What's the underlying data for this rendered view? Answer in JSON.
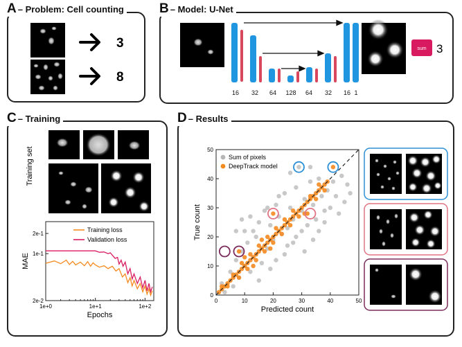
{
  "panels": {
    "a": {
      "letter": "A",
      "title": "– Problem: Cell counting",
      "counts": [
        "3",
        "8"
      ]
    },
    "b": {
      "letter": "B",
      "title": "– Model: U-Net",
      "sum_label": "sum",
      "output": "3",
      "channels": [
        "16",
        "32",
        "64",
        "128",
        "64",
        "32",
        "16",
        "1"
      ]
    },
    "c": {
      "letter": "C",
      "title": "– Training",
      "training_set_label": "Training set"
    },
    "d": {
      "letter": "D",
      "title": "– Results"
    }
  },
  "colors": {
    "blue": "#2196e0",
    "red": "#d9475c",
    "orange": "#f58a1f",
    "gray": "#b5b5b5",
    "training_loss": "#f58a1f",
    "validation_loss": "#d81b60",
    "frame_blue": "#2b8fd6",
    "frame_red": "#e07484",
    "frame_purple": "#7a2b5c"
  },
  "loss_chart": {
    "type": "line",
    "xlabel": "Epochs",
    "ylabel": "MAE",
    "xscale": "log",
    "yscale": "log",
    "xlim": [
      1,
      150
    ],
    "ylim": [
      0.02,
      0.3
    ],
    "xticks": [
      "1e+0",
      "1e+1",
      "1e+2"
    ],
    "yticks": [
      "2e-1",
      "1e-1",
      "2e-2"
    ],
    "series": [
      {
        "name": "Training loss",
        "x": [
          1,
          1.5,
          2,
          2.6,
          3,
          3.5,
          4,
          5,
          6,
          7,
          8,
          9,
          10,
          12,
          15,
          18,
          22,
          26,
          30,
          35,
          40,
          45,
          50,
          55,
          60,
          70,
          80,
          90,
          100,
          110,
          120,
          130,
          140
        ],
        "y": [
          0.072,
          0.078,
          0.071,
          0.08,
          0.069,
          0.077,
          0.068,
          0.075,
          0.066,
          0.076,
          0.065,
          0.073,
          0.068,
          0.063,
          0.066,
          0.06,
          0.065,
          0.055,
          0.06,
          0.045,
          0.05,
          0.037,
          0.044,
          0.033,
          0.04,
          0.03,
          0.036,
          0.027,
          0.033,
          0.025,
          0.03,
          0.024,
          0.028
        ]
      },
      {
        "name": "Validation loss",
        "x": [
          1,
          2,
          3,
          5,
          8,
          10,
          12,
          15,
          18,
          20,
          22,
          25,
          28,
          30,
          33,
          36,
          40,
          45,
          50,
          55,
          60,
          70,
          80,
          90,
          100,
          110,
          120,
          130,
          140
        ],
        "y": [
          0.11,
          0.11,
          0.11,
          0.11,
          0.11,
          0.11,
          0.105,
          0.106,
          0.1,
          0.103,
          0.095,
          0.085,
          0.088,
          0.07,
          0.08,
          0.065,
          0.075,
          0.05,
          0.06,
          0.042,
          0.05,
          0.036,
          0.045,
          0.031,
          0.04,
          0.028,
          0.036,
          0.027,
          0.032
        ]
      }
    ]
  },
  "scatter_chart": {
    "type": "scatter",
    "xlabel": "Predicted count",
    "ylabel": "True count",
    "xlim": [
      0,
      50
    ],
    "ylim": [
      0,
      50
    ],
    "xticks": [
      "0",
      "10",
      "20",
      "30",
      "40",
      "50"
    ],
    "yticks": [
      "0",
      "10",
      "20",
      "30",
      "40",
      "50"
    ],
    "series": [
      {
        "name": "Sum of pixels",
        "points": [
          [
            2,
            4
          ],
          [
            3,
            1
          ],
          [
            5,
            8
          ],
          [
            6,
            3
          ],
          [
            7,
            12
          ],
          [
            8,
            6
          ],
          [
            9,
            15
          ],
          [
            10,
            10
          ],
          [
            11,
            18
          ],
          [
            12,
            8
          ],
          [
            13,
            22
          ],
          [
            14,
            14
          ],
          [
            15,
            25
          ],
          [
            16,
            11
          ],
          [
            17,
            29
          ],
          [
            18,
            16
          ],
          [
            19,
            24
          ],
          [
            20,
            19
          ],
          [
            21,
            31
          ],
          [
            22,
            27
          ],
          [
            23,
            21
          ],
          [
            24,
            35
          ],
          [
            25,
            23
          ],
          [
            26,
            30
          ],
          [
            27,
            26
          ],
          [
            28,
            37
          ],
          [
            29,
            44
          ],
          [
            30,
            29
          ],
          [
            31,
            33
          ],
          [
            32,
            24
          ],
          [
            33,
            39
          ],
          [
            34,
            31
          ],
          [
            35,
            26
          ],
          [
            36,
            40
          ],
          [
            37,
            34
          ],
          [
            38,
            29
          ],
          [
            39,
            36
          ],
          [
            41,
            39
          ],
          [
            42,
            34
          ],
          [
            44,
            41
          ],
          [
            46,
            38
          ],
          [
            47,
            35
          ],
          [
            12,
            27
          ],
          [
            14,
            20
          ],
          [
            10,
            22
          ],
          [
            18,
            30
          ],
          [
            22,
            34
          ],
          [
            25,
            17
          ],
          [
            28,
            20
          ],
          [
            31,
            15
          ],
          [
            33,
            44
          ],
          [
            36,
            22
          ],
          [
            15,
            5
          ],
          [
            19,
            9
          ],
          [
            26,
            42
          ],
          [
            40,
            30
          ],
          [
            9,
            26
          ],
          [
            7,
            22
          ],
          [
            43,
            28
          ],
          [
            45,
            32
          ],
          [
            21,
            12
          ],
          [
            24,
            14
          ],
          [
            27,
            18
          ],
          [
            30,
            22
          ],
          [
            34,
            19
          ],
          [
            38,
            25
          ]
        ]
      },
      {
        "name": "DeepTrack model",
        "points": [
          [
            1,
            1
          ],
          [
            2,
            2
          ],
          [
            3,
            3
          ],
          [
            4,
            4
          ],
          [
            5,
            5
          ],
          [
            6,
            6
          ],
          [
            7,
            7
          ],
          [
            8,
            8
          ],
          [
            9,
            9
          ],
          [
            10,
            10
          ],
          [
            11,
            11
          ],
          [
            12,
            12
          ],
          [
            13,
            13
          ],
          [
            14,
            14
          ],
          [
            15,
            15
          ],
          [
            16,
            16
          ],
          [
            17,
            17
          ],
          [
            18,
            18
          ],
          [
            19,
            19
          ],
          [
            20,
            20
          ],
          [
            21,
            21
          ],
          [
            22,
            22
          ],
          [
            23,
            23
          ],
          [
            24,
            24
          ],
          [
            25,
            25
          ],
          [
            26,
            26
          ],
          [
            27,
            27
          ],
          [
            28,
            28
          ],
          [
            29,
            29
          ],
          [
            30,
            30
          ],
          [
            31,
            31
          ],
          [
            32,
            32
          ],
          [
            33,
            33
          ],
          [
            34,
            34
          ],
          [
            35,
            35
          ],
          [
            36,
            36
          ],
          [
            37,
            37
          ],
          [
            38,
            38
          ],
          [
            39,
            39
          ],
          [
            41,
            44
          ],
          [
            2,
            3
          ],
          [
            4,
            3
          ],
          [
            6,
            7
          ],
          [
            8,
            6
          ],
          [
            9,
            11
          ],
          [
            11,
            9
          ],
          [
            12,
            14
          ],
          [
            14,
            12
          ],
          [
            15,
            17
          ],
          [
            17,
            15
          ],
          [
            18,
            20
          ],
          [
            20,
            18
          ],
          [
            21,
            23
          ],
          [
            23,
            21
          ],
          [
            24,
            26
          ],
          [
            26,
            24
          ],
          [
            27,
            29
          ],
          [
            29,
            27
          ],
          [
            31,
            28
          ],
          [
            32,
            28
          ],
          [
            33,
            34
          ],
          [
            35,
            33
          ],
          [
            36,
            38
          ],
          [
            38,
            36
          ],
          [
            8,
            15
          ],
          [
            20,
            28
          ],
          [
            10,
            13
          ],
          [
            13,
            10
          ],
          [
            16,
            19
          ],
          [
            19,
            16
          ]
        ]
      }
    ]
  }
}
